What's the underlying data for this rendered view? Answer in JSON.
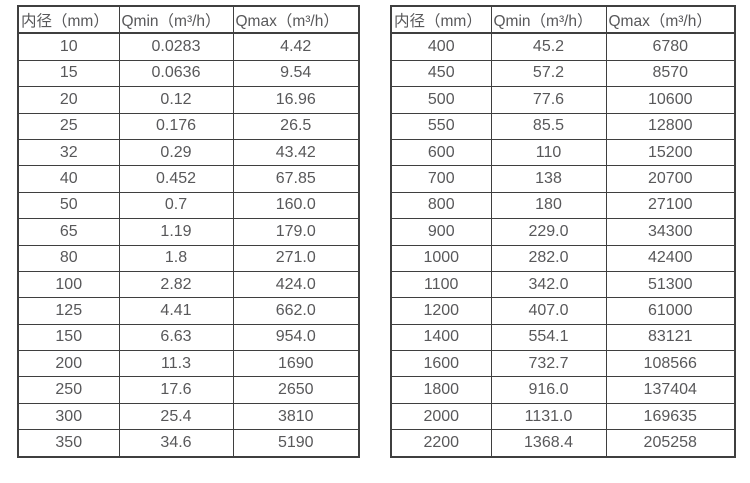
{
  "colors": {
    "border": "#3f3f3f",
    "text": "#58585a",
    "background": "#ffffff"
  },
  "tables": [
    {
      "name": "flow-rate-table-small-diameters",
      "headers": [
        "内径（mm）",
        "Qmin（m³/h）",
        "Qmax（m³/h）"
      ],
      "rows": [
        [
          "10",
          "0.0283",
          "4.42"
        ],
        [
          "15",
          "0.0636",
          "9.54"
        ],
        [
          "20",
          "0.12",
          "16.96"
        ],
        [
          "25",
          "0.176",
          "26.5"
        ],
        [
          "32",
          "0.29",
          "43.42"
        ],
        [
          "40",
          "0.452",
          "67.85"
        ],
        [
          "50",
          "0.7",
          "160.0"
        ],
        [
          "65",
          "1.19",
          "179.0"
        ],
        [
          "80",
          "1.8",
          "271.0"
        ],
        [
          "100",
          "2.82",
          "424.0"
        ],
        [
          "125",
          "4.41",
          "662.0"
        ],
        [
          "150",
          "6.63",
          "954.0"
        ],
        [
          "200",
          "11.3",
          "1690"
        ],
        [
          "250",
          "17.6",
          "2650"
        ],
        [
          "300",
          "25.4",
          "3810"
        ],
        [
          "350",
          "34.6",
          "5190"
        ]
      ]
    },
    {
      "name": "flow-rate-table-large-diameters",
      "headers": [
        "内径（mm）",
        "Qmin（m³/h）",
        "Qmax（m³/h）"
      ],
      "rows": [
        [
          "400",
          "45.2",
          "6780"
        ],
        [
          "450",
          "57.2",
          "8570"
        ],
        [
          "500",
          "77.6",
          "10600"
        ],
        [
          "550",
          "85.5",
          "12800"
        ],
        [
          "600",
          "110",
          "15200"
        ],
        [
          "700",
          "138",
          "20700"
        ],
        [
          "800",
          "180",
          "27100"
        ],
        [
          "900",
          "229.0",
          "34300"
        ],
        [
          "1000",
          "282.0",
          "42400"
        ],
        [
          "1100",
          "342.0",
          "51300"
        ],
        [
          "1200",
          "407.0",
          "61000"
        ],
        [
          "1400",
          "554.1",
          "83121"
        ],
        [
          "1600",
          "732.7",
          "108566"
        ],
        [
          "1800",
          "916.0",
          "137404"
        ],
        [
          "2000",
          "1131.0",
          "169635"
        ],
        [
          "2200",
          "1368.4",
          "205258"
        ]
      ]
    }
  ]
}
